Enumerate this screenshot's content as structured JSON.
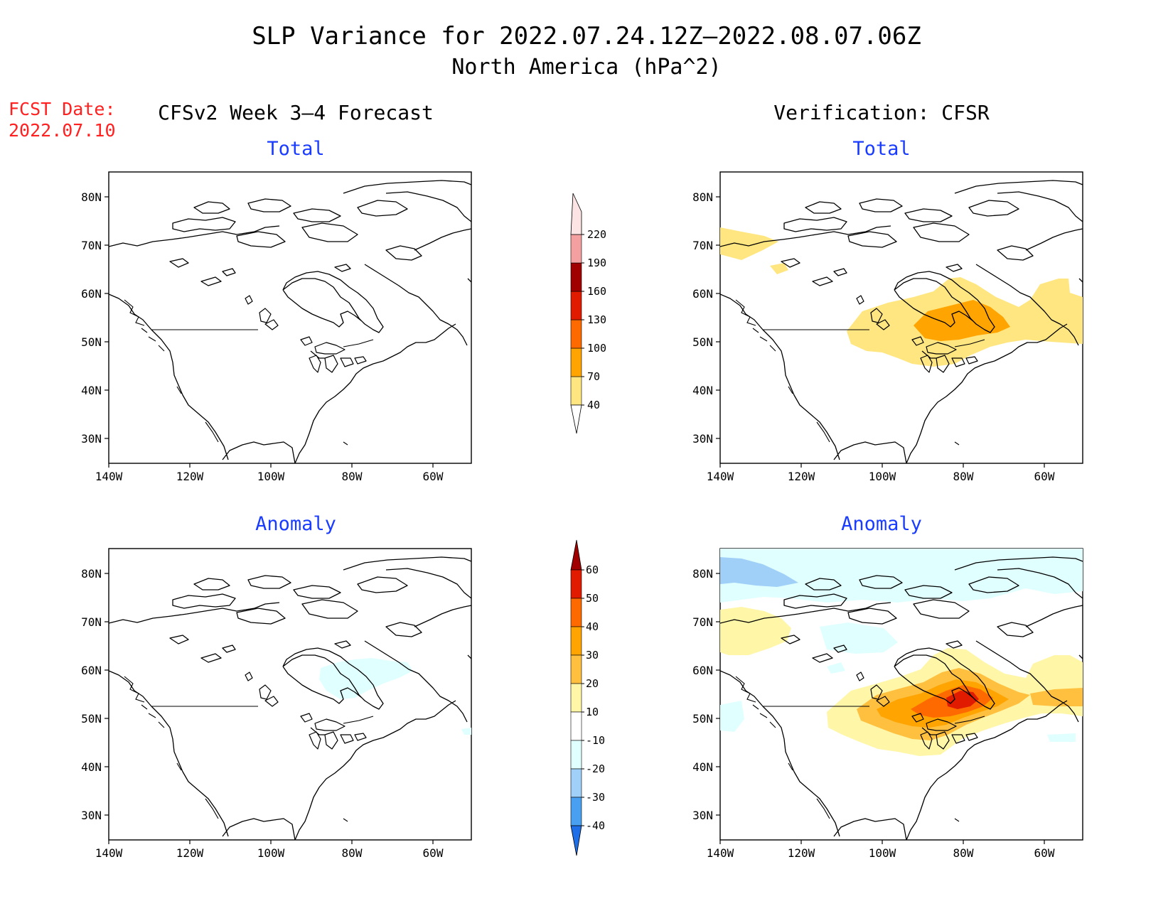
{
  "figure": {
    "title_line1": "SLP Variance for 2022.07.24.12Z—2022.08.07.06Z",
    "title_line2": "North America (hPa^2)",
    "fcst_label": "FCST Date:",
    "fcst_date": "2022.07.10",
    "left_column_title": "CFSv2 Week 3–4 Forecast",
    "right_column_title": "Verification: CFSR"
  },
  "colors": {
    "title": "#000000",
    "fcst": "#ff2020",
    "panel_title": "#1a3cff"
  },
  "axes": {
    "x_ticks": [
      "140W",
      "120W",
      "100W",
      "80W",
      "60W"
    ],
    "y_ticks": [
      "80N",
      "70N",
      "60N",
      "50N",
      "40N",
      "30N"
    ]
  },
  "panels": [
    {
      "id": "forecast-total",
      "title": "Total"
    },
    {
      "id": "verification-total",
      "title": "Total"
    },
    {
      "id": "forecast-anomaly",
      "title": "Anomaly"
    },
    {
      "id": "verification-anomaly",
      "title": "Anomaly"
    }
  ],
  "colorbars": {
    "total": {
      "labels": [
        "40",
        "70",
        "100",
        "130",
        "160",
        "190",
        "220"
      ],
      "colors": [
        "#ffe680",
        "#ffa400",
        "#ff6a00",
        "#e01b00",
        "#a00000",
        "#f4a0a0",
        "#fde4e4"
      ]
    },
    "anomaly": {
      "labels": [
        "60",
        "50",
        "40",
        "30",
        "20",
        "10",
        "-10",
        "-20",
        "-30",
        "-40"
      ],
      "colors": [
        "#a00000",
        "#e01b00",
        "#ff6a00",
        "#ffa400",
        "#ffc040",
        "#fff6a8",
        "#ffffff",
        "#e0ffff",
        "#a0d0f8",
        "#4aa0f0",
        "#1e6ee8"
      ]
    }
  }
}
